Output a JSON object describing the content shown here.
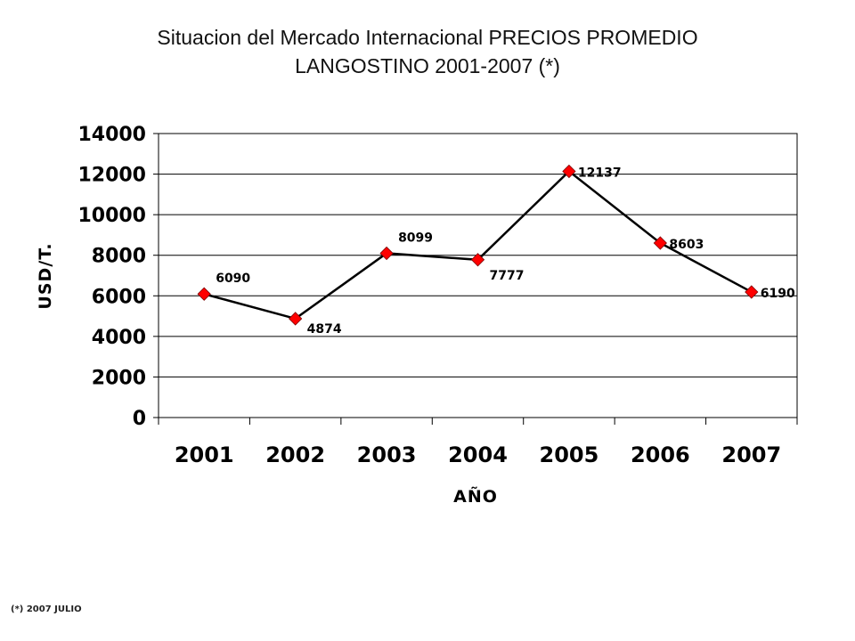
{
  "chart_data": {
    "type": "line",
    "title_line1": "Situacion del Mercado Internacional PRECIOS PROMEDIO",
    "title_line2": "LANGOSTINO 2001-2007 (*)",
    "xlabel": "AÑO",
    "ylabel": "USD/T.",
    "categories": [
      "2001",
      "2002",
      "2003",
      "2004",
      "2005",
      "2006",
      "2007"
    ],
    "series": [
      {
        "values": [
          6090,
          4874,
          8099,
          7777,
          12137,
          8603,
          6190
        ]
      }
    ],
    "data_labels": [
      "6090",
      "4874",
      "8099",
      "7777",
      "12137",
      "8603",
      "6190"
    ],
    "yticks": [
      "0",
      "2000",
      "4000",
      "6000",
      "8000",
      "10000",
      "12000",
      "14000"
    ],
    "ylim": [
      0,
      14000
    ],
    "grid": true,
    "legend": "none",
    "line_color": "#000000",
    "marker_color": "#ff0000"
  },
  "footnote": "(*) 2007 JULIO"
}
